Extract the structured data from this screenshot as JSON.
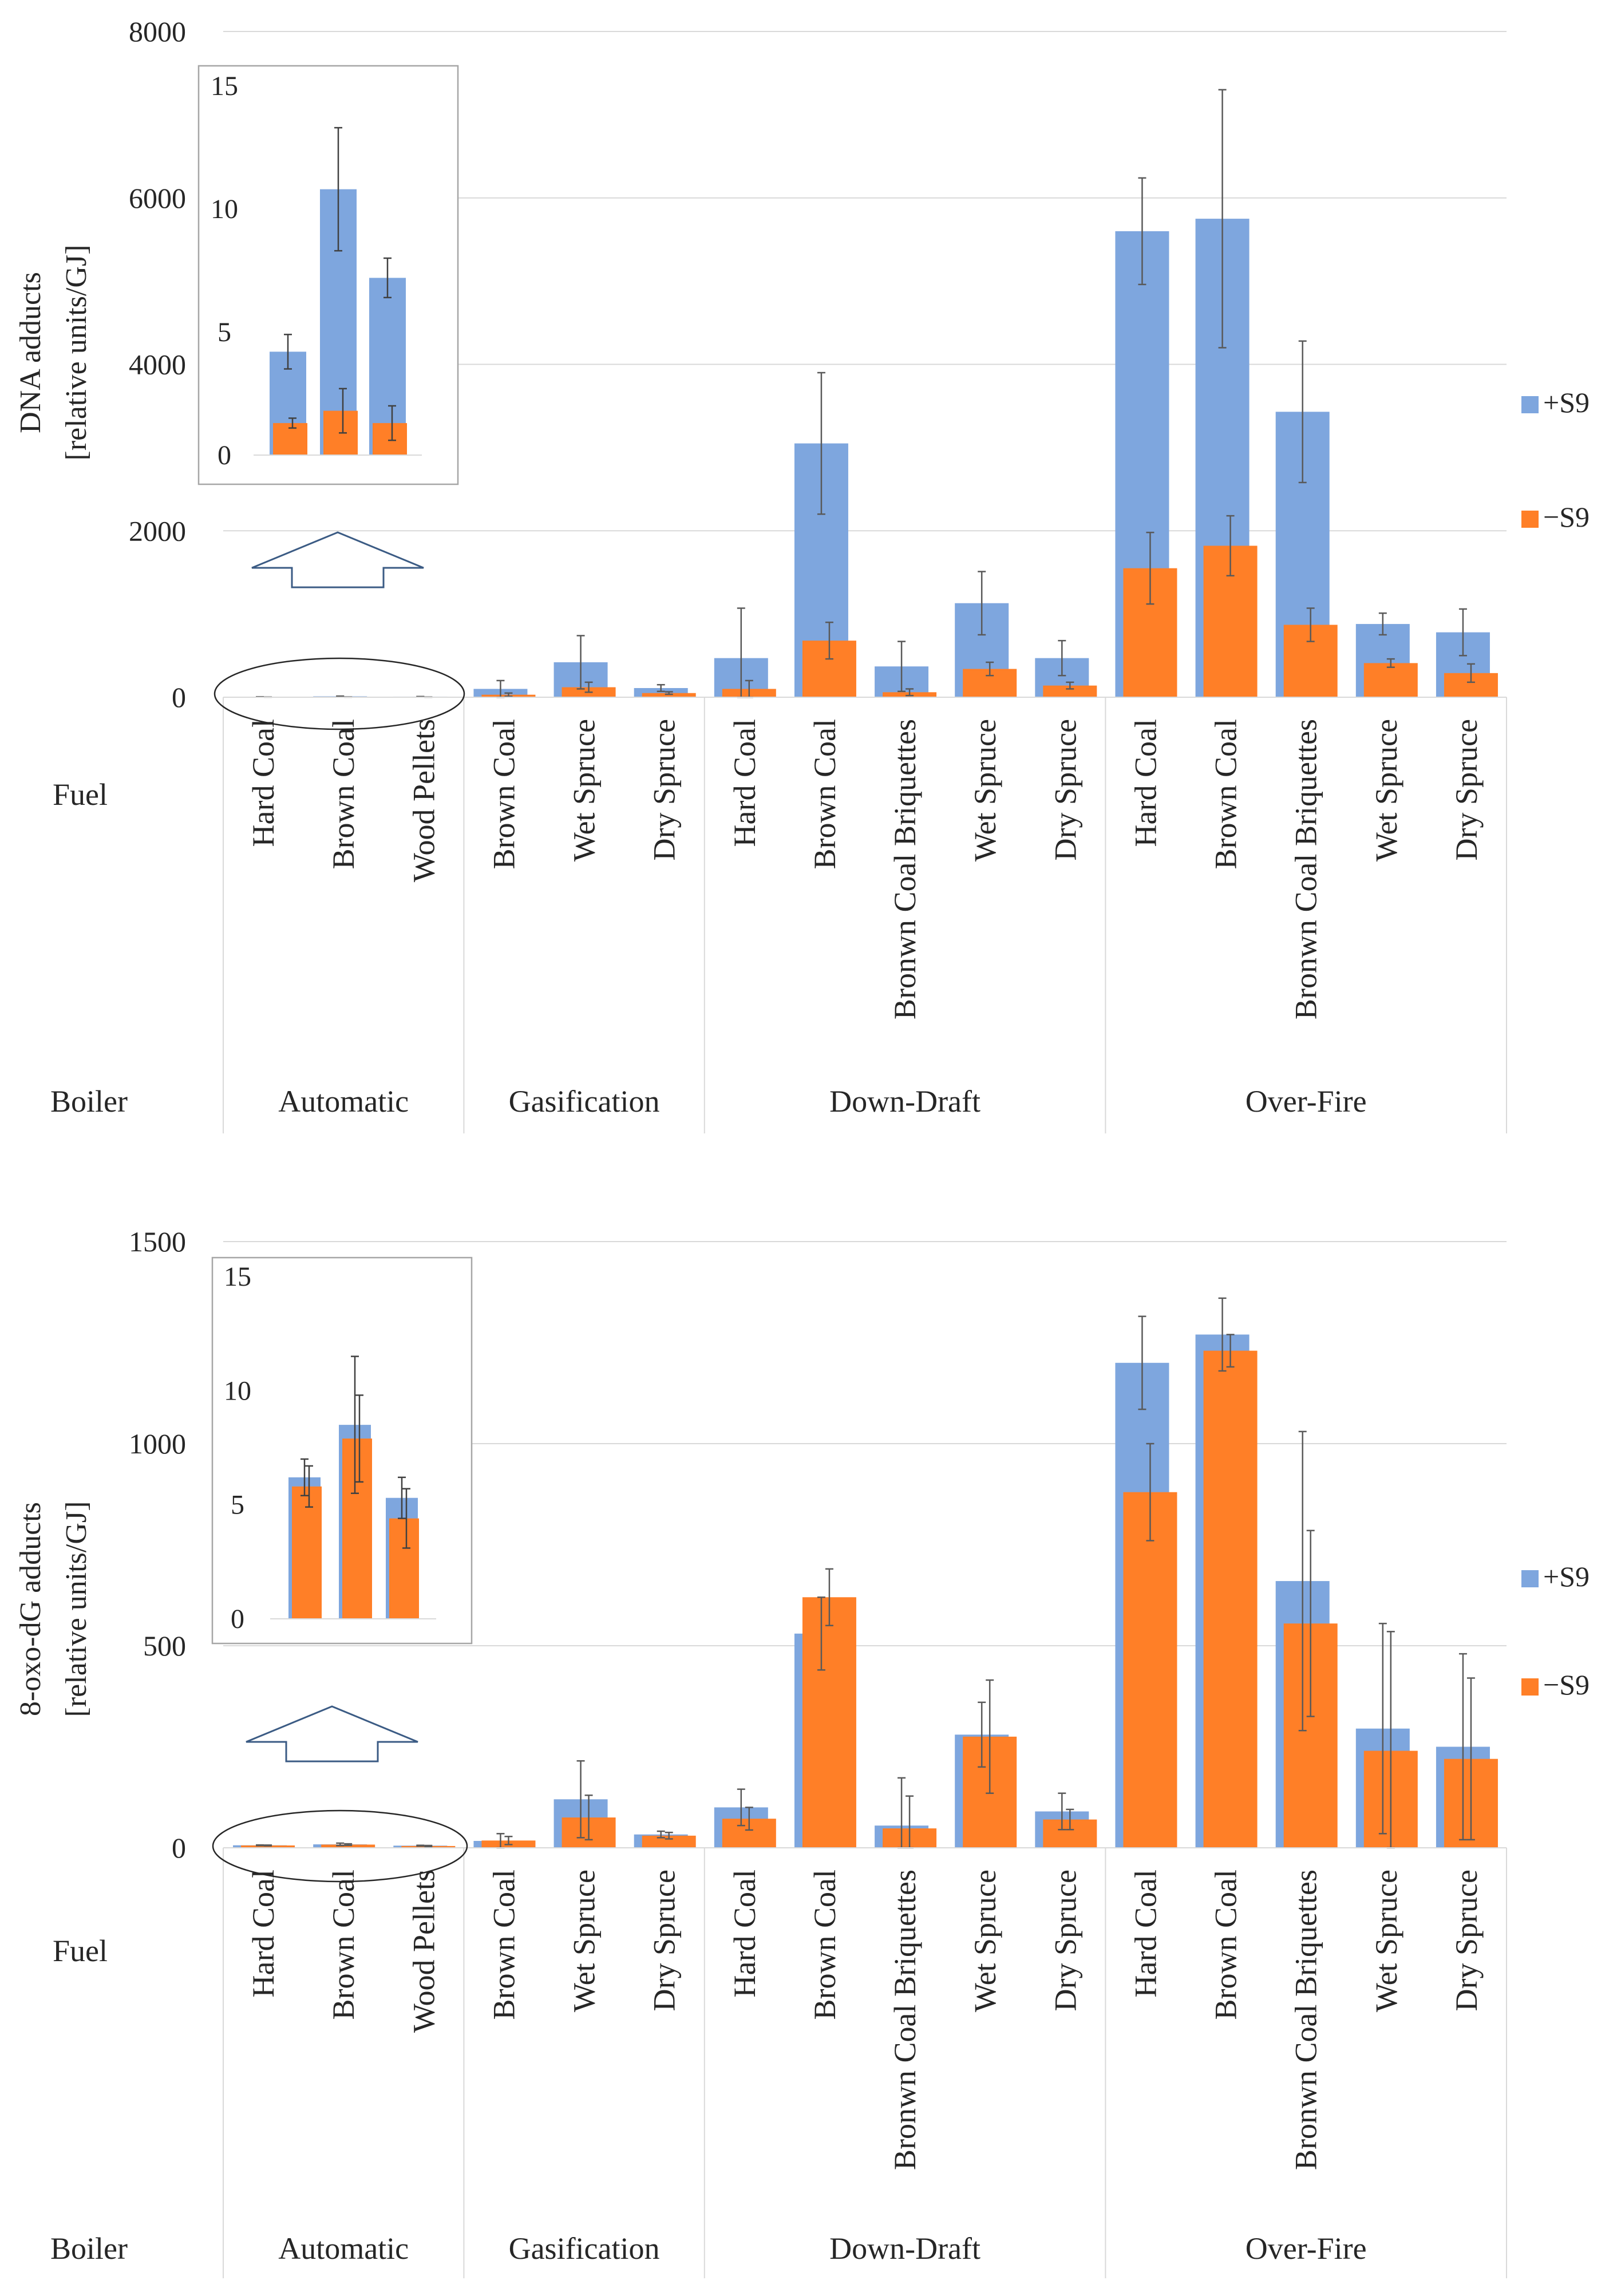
{
  "chart_data": [
    {
      "type": "bar",
      "ylabel_line1": "DNA adducts",
      "ylabel_line2": "[relative units/GJ]",
      "ylim": [
        0,
        8000
      ],
      "yticks": [
        "0",
        "2000",
        "4000",
        "6000",
        "8000"
      ],
      "ytick_values": [
        0,
        2000,
        4000,
        6000,
        8000
      ],
      "row_labels": {
        "fuel": "Fuel",
        "boiler": "Boiler"
      },
      "groups": [
        {
          "name": "Automatic",
          "count": 3
        },
        {
          "name": "Gasification",
          "count": 3
        },
        {
          "name": "Down-Draft",
          "count": 5
        },
        {
          "name": "Over-Fire",
          "count": 5
        }
      ],
      "categories": [
        "Hard Coal",
        "Brown Coal",
        "Wood Pellets",
        "Brown Coal",
        "Wet Spruce",
        "Dry Spruce",
        "Hard Coal",
        "Brown Coal",
        "Bronwn Coal Briquettes",
        "Wet Spruce",
        "Dry Spruce",
        "Hard Coal",
        "Brown Coal",
        "Bronwn Coal Briquettes",
        "Wet Spruce",
        "Dry Spruce"
      ],
      "series": [
        {
          "name": "+S9",
          "color": "#7EA6DE",
          "values": [
            4.2,
            10.8,
            7.2,
            100,
            420,
            110,
            470,
            3050,
            370,
            1130,
            470,
            5600,
            5750,
            3430,
            880,
            780
          ],
          "errors": [
            0.7,
            2.5,
            0.8,
            100,
            320,
            40,
            600,
            850,
            300,
            380,
            210,
            640,
            1550,
            850,
            130,
            280
          ]
        },
        {
          "name": "−S9",
          "color": "#FF7F27",
          "values": [
            1.3,
            1.8,
            1.3,
            30,
            120,
            50,
            100,
            680,
            60,
            340,
            140,
            1550,
            1820,
            870,
            410,
            290
          ],
          "errors": [
            0.2,
            0.9,
            0.7,
            20,
            60,
            15,
            100,
            220,
            40,
            80,
            40,
            430,
            360,
            200,
            50,
            110
          ]
        }
      ],
      "inset": {
        "ylim": [
          0,
          15
        ],
        "yticks": [
          "0",
          "5",
          "10",
          "15"
        ],
        "ytick_values": [
          0,
          5,
          10,
          15
        ],
        "categories": [
          "Hard Coal",
          "Brown Coal",
          "Wood Pellets"
        ],
        "plus_values": [
          4.2,
          10.8,
          7.2
        ],
        "plus_errors": [
          0.7,
          2.5,
          0.8
        ],
        "minus_values": [
          1.3,
          1.8,
          1.3
        ],
        "minus_errors": [
          0.2,
          0.9,
          0.7
        ]
      },
      "legend": [
        "+S9",
        "−S9"
      ]
    },
    {
      "type": "bar",
      "ylabel_line1": "8-oxo-dG adducts",
      "ylabel_line2": "[relative units/GJ]",
      "ylim": [
        0,
        1500
      ],
      "yticks": [
        "0",
        "500",
        "1000",
        "1500"
      ],
      "ytick_values": [
        0,
        500,
        1000,
        1500
      ],
      "row_labels": {
        "fuel": "Fuel",
        "boiler": "Boiler"
      },
      "groups": [
        {
          "name": "Automatic",
          "count": 3
        },
        {
          "name": "Gasification",
          "count": 3
        },
        {
          "name": "Down-Draft",
          "count": 5
        },
        {
          "name": "Over-Fire",
          "count": 5
        }
      ],
      "categories": [
        "Hard Coal",
        "Brown Coal",
        "Wood Pellets",
        "Brown Coal",
        "Wet Spruce",
        "Dry Spruce",
        "Hard Coal",
        "Brown Coal",
        "Bronwn Coal Briquettes",
        "Wet Spruce",
        "Dry Spruce",
        "Hard Coal",
        "Brown Coal",
        "Bronwn Coal Briquettes",
        "Wet Spruce",
        "Dry Spruce"
      ],
      "series": [
        {
          "name": "+S9",
          "color": "#7EA6DE",
          "values": [
            6.2,
            8.5,
            5.3,
            17,
            120,
            33,
            100,
            530,
            55,
            280,
            90,
            1200,
            1270,
            660,
            295,
            250
          ],
          "errors": [
            0.8,
            3.0,
            0.9,
            18,
            95,
            8,
            45,
            90,
            118,
            80,
            45,
            115,
            90,
            370,
            260,
            230
          ]
        },
        {
          "name": "−S9",
          "color": "#FF7F27",
          "values": [
            5.8,
            7.9,
            4.4,
            18,
            75,
            30,
            72,
            620,
            48,
            275,
            70,
            880,
            1230,
            555,
            240,
            220
          ],
          "errors": [
            0.9,
            1.9,
            1.3,
            10,
            55,
            8,
            28,
            70,
            80,
            140,
            25,
            120,
            40,
            230,
            295,
            200
          ]
        }
      ],
      "inset": {
        "ylim": [
          0,
          15
        ],
        "yticks": [
          "0",
          "5",
          "10",
          "15"
        ],
        "ytick_values": [
          0,
          5,
          10,
          15
        ],
        "categories": [
          "Hard Coal",
          "Brown Coal",
          "Wood Pellets"
        ],
        "plus_values": [
          6.2,
          8.5,
          5.3
        ],
        "plus_errors": [
          0.8,
          3.0,
          0.9
        ],
        "minus_values": [
          5.8,
          7.9,
          4.4
        ],
        "minus_errors": [
          0.9,
          1.9,
          1.3
        ]
      },
      "legend": [
        "+S9",
        "−S9"
      ]
    }
  ]
}
